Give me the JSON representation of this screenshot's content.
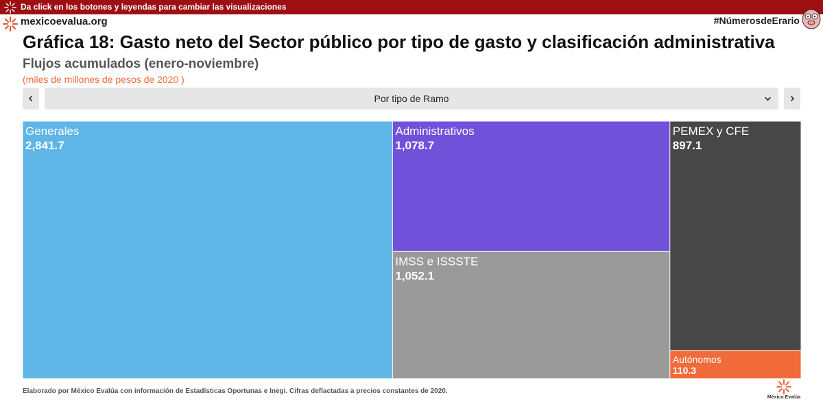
{
  "banner": {
    "text": "Da click en los botones y leyendas para cambiar las visualizaciones"
  },
  "site": {
    "name": "mexicoevalua.org"
  },
  "hashtag": "#NúmerosdeErario",
  "selector": {
    "selected": "Por tipo de Ramo"
  },
  "footnote": "Elaborado por México Evalúa con información de Estadísticas Oportunas e Inegi. Cifras deflactadas a precios constantes de 2020.",
  "logo_text": "México Evalúa",
  "icons": [
    "sunburst-icon",
    "mascot-icon",
    "chevron-left-icon",
    "chevron-right-icon",
    "chevron-down-icon"
  ],
  "colors": {
    "banner": "#9e0f14",
    "accent": "#f26b3a"
  },
  "chart_data": {
    "type": "treemap",
    "title": "Gráfica 18: Gasto neto del Sector público por tipo de gasto y clasificación administrativa",
    "subtitle": "Flujos acumulados (enero-noviembre)",
    "units": "(miles de millones de pesos de 2020 )",
    "labels": [
      {
        "name": "Generales",
        "value": 2841.7,
        "display": "2,841.7",
        "color": "#5eb5e6"
      },
      {
        "name": "Administrativos",
        "value": 1078.7,
        "display": "1,078.7",
        "color": "#6f52d9"
      },
      {
        "name": "IMSS e ISSSTE",
        "value": 1052.1,
        "display": "1,052.1",
        "color": "#9a9a9a"
      },
      {
        "name": "PEMEX y CFE",
        "value": 897.1,
        "display": "897.1",
        "color": "#474747"
      },
      {
        "name": "Autónomos",
        "value": 110.3,
        "display": "110.3",
        "color": "#f26b3a"
      }
    ]
  }
}
